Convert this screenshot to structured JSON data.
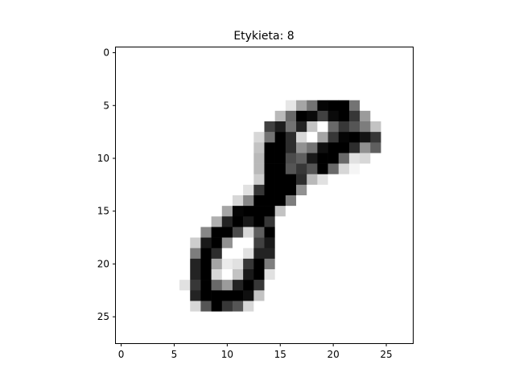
{
  "chart_data": {
    "type": "heatmap",
    "title": "Etykieta:  8",
    "colormap": "gray_r",
    "value_range": [
      0,
      255
    ],
    "xlim": [
      -0.5,
      27.5
    ],
    "ylim": [
      27.5,
      -0.5
    ],
    "x_ticks": [
      0,
      5,
      10,
      15,
      20,
      25
    ],
    "y_ticks": [
      0,
      5,
      10,
      15,
      20,
      25
    ],
    "x_tick_labels": [
      "0",
      "5",
      "10",
      "15",
      "20",
      "25"
    ],
    "y_tick_labels": [
      "0",
      "5",
      "10",
      "15",
      "20",
      "25"
    ],
    "grid": false,
    "pixels": [
      [
        0,
        0,
        0,
        0,
        0,
        0,
        0,
        0,
        0,
        0,
        0,
        0,
        0,
        0,
        0,
        0,
        0,
        0,
        0,
        0,
        0,
        0,
        0,
        0,
        0,
        0,
        0,
        0
      ],
      [
        0,
        0,
        0,
        0,
        0,
        0,
        0,
        0,
        0,
        0,
        0,
        0,
        0,
        0,
        0,
        0,
        0,
        0,
        0,
        0,
        0,
        0,
        0,
        0,
        0,
        0,
        0,
        0
      ],
      [
        0,
        0,
        0,
        0,
        0,
        0,
        0,
        0,
        0,
        0,
        0,
        0,
        0,
        0,
        0,
        0,
        0,
        0,
        0,
        0,
        0,
        0,
        0,
        0,
        0,
        0,
        0,
        0
      ],
      [
        0,
        0,
        0,
        0,
        0,
        0,
        0,
        0,
        0,
        0,
        0,
        0,
        0,
        0,
        0,
        0,
        0,
        0,
        0,
        0,
        0,
        0,
        0,
        0,
        0,
        0,
        0,
        0
      ],
      [
        0,
        0,
        0,
        0,
        0,
        0,
        0,
        0,
        0,
        0,
        0,
        0,
        0,
        0,
        0,
        0,
        0,
        0,
        0,
        0,
        0,
        0,
        0,
        0,
        0,
        0,
        0,
        0
      ],
      [
        0,
        0,
        0,
        0,
        0,
        0,
        0,
        0,
        0,
        0,
        0,
        0,
        0,
        0,
        0,
        0,
        25,
        90,
        140,
        250,
        255,
        255,
        140,
        0,
        0,
        0,
        0,
        0
      ],
      [
        0,
        0,
        0,
        0,
        0,
        0,
        0,
        0,
        0,
        0,
        0,
        0,
        0,
        0,
        0,
        70,
        150,
        255,
        245,
        190,
        245,
        255,
        200,
        100,
        0,
        0,
        0,
        0
      ],
      [
        0,
        0,
        0,
        0,
        0,
        0,
        0,
        0,
        0,
        0,
        0,
        0,
        0,
        0,
        190,
        225,
        140,
        220,
        60,
        0,
        150,
        200,
        170,
        130,
        60,
        0,
        0,
        0
      ],
      [
        0,
        0,
        0,
        0,
        0,
        0,
        0,
        0,
        0,
        0,
        0,
        0,
        0,
        40,
        140,
        255,
        210,
        40,
        0,
        90,
        200,
        250,
        255,
        235,
        200,
        0,
        0,
        0
      ],
      [
        0,
        0,
        0,
        0,
        0,
        0,
        0,
        0,
        0,
        0,
        0,
        0,
        0,
        60,
        255,
        255,
        210,
        110,
        140,
        240,
        255,
        255,
        210,
        110,
        160,
        0,
        0,
        0
      ],
      [
        0,
        0,
        0,
        0,
        0,
        0,
        0,
        0,
        0,
        0,
        0,
        0,
        0,
        70,
        255,
        255,
        180,
        160,
        230,
        255,
        255,
        150,
        30,
        40,
        0,
        0,
        0,
        0
      ],
      [
        0,
        0,
        0,
        0,
        0,
        0,
        0,
        0,
        0,
        0,
        0,
        0,
        0,
        70,
        255,
        255,
        170,
        200,
        170,
        255,
        150,
        40,
        10,
        0,
        0,
        0,
        0,
        0
      ],
      [
        0,
        0,
        0,
        0,
        0,
        0,
        0,
        0,
        0,
        0,
        0,
        0,
        0,
        50,
        255,
        255,
        255,
        210,
        70,
        30,
        0,
        0,
        0,
        0,
        0,
        0,
        0,
        0
      ],
      [
        0,
        0,
        0,
        0,
        0,
        0,
        0,
        0,
        0,
        0,
        0,
        0,
        30,
        200,
        255,
        255,
        255,
        110,
        0,
        0,
        0,
        0,
        0,
        0,
        0,
        0,
        0,
        0
      ],
      [
        0,
        0,
        0,
        0,
        0,
        0,
        0,
        0,
        0,
        0,
        0,
        40,
        120,
        255,
        255,
        255,
        130,
        0,
        0,
        0,
        0,
        0,
        0,
        0,
        0,
        0,
        0,
        0
      ],
      [
        0,
        0,
        0,
        0,
        0,
        0,
        0,
        0,
        0,
        0,
        90,
        250,
        255,
        255,
        255,
        60,
        0,
        0,
        0,
        0,
        0,
        0,
        0,
        0,
        0,
        0,
        0,
        0
      ],
      [
        0,
        0,
        0,
        0,
        0,
        0,
        0,
        0,
        0,
        80,
        220,
        255,
        230,
        255,
        200,
        0,
        0,
        0,
        0,
        0,
        0,
        0,
        0,
        0,
        0,
        0,
        0,
        0
      ],
      [
        0,
        0,
        0,
        0,
        0,
        0,
        0,
        0,
        120,
        255,
        255,
        180,
        40,
        160,
        255,
        0,
        0,
        0,
        0,
        0,
        0,
        0,
        0,
        0,
        0,
        0,
        0,
        0
      ],
      [
        0,
        0,
        0,
        0,
        0,
        0,
        0,
        50,
        230,
        255,
        110,
        0,
        0,
        190,
        230,
        0,
        0,
        0,
        0,
        0,
        0,
        0,
        0,
        0,
        0,
        0,
        0,
        0
      ],
      [
        0,
        0,
        0,
        0,
        0,
        0,
        0,
        130,
        255,
        210,
        0,
        0,
        30,
        220,
        220,
        0,
        0,
        0,
        0,
        0,
        0,
        0,
        0,
        0,
        0,
        0,
        0,
        0
      ],
      [
        0,
        0,
        0,
        0,
        0,
        0,
        0,
        220,
        255,
        90,
        20,
        30,
        200,
        255,
        130,
        0,
        0,
        0,
        0,
        0,
        0,
        0,
        0,
        0,
        0,
        0,
        0,
        0
      ],
      [
        0,
        0,
        0,
        0,
        0,
        0,
        0,
        220,
        255,
        40,
        0,
        60,
        230,
        255,
        30,
        0,
        0,
        0,
        0,
        0,
        0,
        0,
        0,
        0,
        0,
        0,
        0,
        0
      ],
      [
        0,
        0,
        0,
        0,
        0,
        0,
        30,
        200,
        255,
        150,
        100,
        220,
        255,
        200,
        0,
        0,
        0,
        0,
        0,
        0,
        0,
        0,
        0,
        0,
        0,
        0,
        0,
        0
      ],
      [
        0,
        0,
        0,
        0,
        0,
        0,
        0,
        220,
        255,
        255,
        255,
        255,
        240,
        60,
        0,
        0,
        0,
        0,
        0,
        0,
        0,
        0,
        0,
        0,
        0,
        0,
        0,
        0
      ],
      [
        0,
        0,
        0,
        0,
        0,
        0,
        0,
        40,
        170,
        255,
        200,
        170,
        40,
        0,
        0,
        0,
        0,
        0,
        0,
        0,
        0,
        0,
        0,
        0,
        0,
        0,
        0,
        0
      ],
      [
        0,
        0,
        0,
        0,
        0,
        0,
        0,
        0,
        0,
        0,
        0,
        0,
        0,
        0,
        0,
        0,
        0,
        0,
        0,
        0,
        0,
        0,
        0,
        0,
        0,
        0,
        0,
        0
      ],
      [
        0,
        0,
        0,
        0,
        0,
        0,
        0,
        0,
        0,
        0,
        0,
        0,
        0,
        0,
        0,
        0,
        0,
        0,
        0,
        0,
        0,
        0,
        0,
        0,
        0,
        0,
        0,
        0
      ],
      [
        0,
        0,
        0,
        0,
        0,
        0,
        0,
        0,
        0,
        0,
        0,
        0,
        0,
        0,
        0,
        0,
        0,
        0,
        0,
        0,
        0,
        0,
        0,
        0,
        0,
        0,
        0,
        0
      ]
    ]
  }
}
